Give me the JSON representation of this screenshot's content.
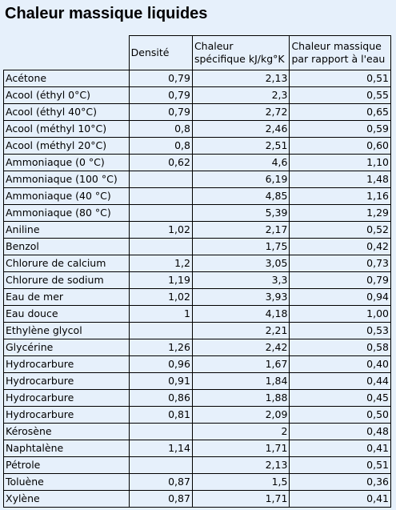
{
  "title": "Chaleur massique liquides",
  "table": {
    "headers": {
      "densite": "Densité",
      "chaleur_line1": "Chaleur",
      "chaleur_line2": "spécifique kJ/kg°K",
      "ratio_line1": "Chaleur massique",
      "ratio_line2": "par rapport à l'eau"
    },
    "rows": [
      {
        "name": "Acétone",
        "densite": "0,79",
        "chaleur": "2,13",
        "ratio": "0,51"
      },
      {
        "name": "Acool (éthyl 0°C)",
        "densite": "0,79",
        "chaleur": "2,3",
        "ratio": "0,55"
      },
      {
        "name": "Acool (éthyl 40°C)",
        "densite": "0,79",
        "chaleur": "2,72",
        "ratio": "0,65"
      },
      {
        "name": "Acool (méthyl 10°C)",
        "densite": "0,8",
        "chaleur": "2,46",
        "ratio": "0,59"
      },
      {
        "name": "Acool (méthyl 20°C)",
        "densite": "0,8",
        "chaleur": "2,51",
        "ratio": "0,60"
      },
      {
        "name": "Ammoniaque (0 °C)",
        "densite": "0,62",
        "chaleur": "4,6",
        "ratio": "1,10"
      },
      {
        "name": "Ammoniaque (100 °C)",
        "densite": "",
        "chaleur": "6,19",
        "ratio": "1,48"
      },
      {
        "name": "Ammoniaque (40 °C)",
        "densite": "",
        "chaleur": "4,85",
        "ratio": "1,16"
      },
      {
        "name": "Ammoniaque (80 °C)",
        "densite": "",
        "chaleur": "5,39",
        "ratio": "1,29"
      },
      {
        "name": "Aniline",
        "densite": "1,02",
        "chaleur": "2,17",
        "ratio": "0,52"
      },
      {
        "name": "Benzol",
        "densite": "",
        "chaleur": "1,75",
        "ratio": "0,42"
      },
      {
        "name": "Chlorure de calcium",
        "densite": "1,2",
        "chaleur": "3,05",
        "ratio": "0,73"
      },
      {
        "name": "Chlorure de sodium",
        "densite": "1,19",
        "chaleur": "3,3",
        "ratio": "0,79"
      },
      {
        "name": "Eau de mer",
        "densite": "1,02",
        "chaleur": "3,93",
        "ratio": "0,94"
      },
      {
        "name": "Eau douce",
        "densite": "1",
        "chaleur": "4,18",
        "ratio": "1,00"
      },
      {
        "name": "Ethylène glycol",
        "densite": "",
        "chaleur": "2,21",
        "ratio": "0,53"
      },
      {
        "name": "Glycérine",
        "densite": "1,26",
        "chaleur": "2,42",
        "ratio": "0,58"
      },
      {
        "name": "Hydrocarbure",
        "densite": "0,96",
        "chaleur": "1,67",
        "ratio": "0,40"
      },
      {
        "name": "Hydrocarbure",
        "densite": "0,91",
        "chaleur": "1,84",
        "ratio": "0,44"
      },
      {
        "name": "Hydrocarbure",
        "densite": "0,86",
        "chaleur": "1,88",
        "ratio": "0,45"
      },
      {
        "name": "Hydrocarbure",
        "densite": "0,81",
        "chaleur": "2,09",
        "ratio": "0,50"
      },
      {
        "name": "Kérosène",
        "densite": "",
        "chaleur": "2",
        "ratio": "0,48"
      },
      {
        "name": "Naphtalène",
        "densite": "1,14",
        "chaleur": "1,71",
        "ratio": "0,41"
      },
      {
        "name": "Pétrole",
        "densite": "",
        "chaleur": "2,13",
        "ratio": "0,51"
      },
      {
        "name": "Toluène",
        "densite": "0,87",
        "chaleur": "1,5",
        "ratio": "0,36"
      },
      {
        "name": "Xylène",
        "densite": "0,87",
        "chaleur": "1,71",
        "ratio": "0,41"
      }
    ]
  }
}
